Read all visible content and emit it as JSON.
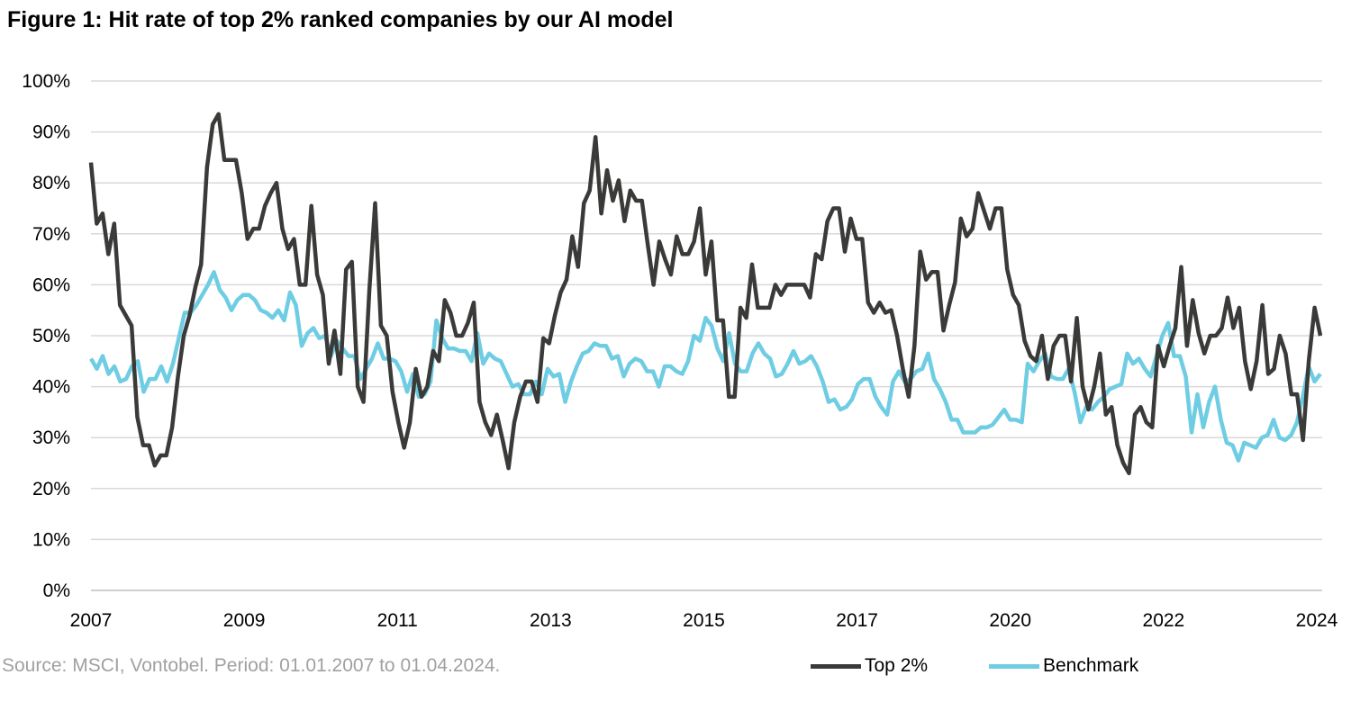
{
  "chart_data": {
    "type": "line",
    "title": "Figure 1: Hit rate of top 2% ranked companies by our AI model",
    "source": "Source: MSCI, Vontobel. Period: 01.01.2007 to 01.04.2024.",
    "x_tick_labels": [
      "2007",
      "2009",
      "2011",
      "2013",
      "2015",
      "2017",
      "2020",
      "2022",
      "2024"
    ],
    "y_tick_labels": [
      "0%",
      "10%",
      "20%",
      "30%",
      "40%",
      "50%",
      "60%",
      "70%",
      "80%",
      "90%",
      "100%"
    ],
    "ylim": [
      0,
      100
    ],
    "y_unit": "%",
    "grid": "horizontal",
    "legend_position": "bottom-right",
    "series": [
      {
        "name": "Top 2%",
        "color": "#3a3b39",
        "values": [
          84,
          72,
          74,
          66,
          72,
          56,
          54,
          52,
          34,
          28.5,
          28.5,
          24.5,
          26.5,
          26.5,
          32,
          42,
          50,
          54,
          59.5,
          64,
          83,
          91.5,
          93.5,
          84.5,
          84.5,
          84.5,
          78,
          69,
          71,
          71,
          75.5,
          78,
          80,
          71,
          67,
          69,
          60,
          60,
          75.5,
          62,
          58,
          44.5,
          51,
          42.5,
          63,
          64.5,
          40,
          37,
          59,
          76,
          52,
          50,
          39,
          33,
          28,
          33,
          43.5,
          38,
          40,
          47,
          45,
          57,
          54.5,
          50,
          50,
          52.5,
          56.5,
          37,
          33,
          30.5,
          34.5,
          29.5,
          24,
          33,
          38,
          41,
          41,
          37,
          49.5,
          48.5,
          54,
          58.5,
          61,
          69.5,
          63.5,
          76,
          78.5,
          89,
          74,
          82.5,
          76.5,
          80.5,
          72.5,
          78.5,
          76.5,
          76.5,
          68,
          60,
          68.5,
          65,
          62,
          69.5,
          66,
          66,
          68.5,
          75,
          62,
          68.5,
          53,
          53,
          38,
          38,
          55.5,
          53.5,
          64,
          55.5,
          55.5,
          55.5,
          60,
          58,
          60,
          60,
          60,
          60,
          57.5,
          66,
          65,
          72.5,
          75,
          75,
          66.5,
          73,
          69,
          69,
          56.5,
          54.5,
          56.5,
          54.5,
          55,
          50,
          43.5,
          38,
          48,
          66.5,
          61,
          62.5,
          62.5,
          51,
          56,
          60.5,
          73,
          69.5,
          71,
          78,
          74.5,
          71,
          75,
          75,
          63,
          58,
          56,
          49,
          46,
          45,
          50,
          41.5,
          48,
          50,
          50,
          41,
          53.5,
          40,
          35.5,
          40,
          46.5,
          34.5,
          36,
          28.5,
          25,
          23,
          34.5,
          36,
          33,
          32,
          48,
          44,
          48,
          51.5,
          63.5,
          48,
          57,
          50.5,
          46.5,
          50,
          50,
          51.5,
          57.5,
          51.5,
          55.5,
          45,
          39.5,
          45,
          56,
          42.5,
          43.5,
          50,
          46.5,
          38.5,
          38.5,
          29.5,
          45,
          55.5,
          50
        ]
      },
      {
        "name": "Benchmark",
        "color": "#6fcde3",
        "values": [
          45.5,
          43.5,
          46,
          42.5,
          44,
          41,
          41.5,
          44,
          45,
          39,
          41.5,
          41.5,
          44,
          41,
          44.5,
          49.5,
          54.5,
          54.5,
          56,
          58,
          60,
          62.5,
          59,
          57.5,
          55,
          57,
          58,
          58,
          57,
          55,
          54.5,
          53.5,
          55,
          53,
          58.5,
          56,
          48,
          50.5,
          51.5,
          49.5,
          50,
          46,
          49,
          47.5,
          46,
          46,
          41.5,
          43.5,
          45.5,
          48.5,
          45.5,
          45.5,
          45,
          43,
          39,
          42.5,
          38,
          38.5,
          41,
          53,
          49.5,
          47.5,
          47.5,
          47,
          47,
          45,
          50.5,
          44.5,
          46.5,
          45.5,
          45,
          42.5,
          40,
          40.5,
          38.5,
          38.5,
          41,
          38.5,
          43.5,
          42,
          42.5,
          37,
          41,
          44,
          46.5,
          47,
          48.5,
          48,
          48,
          45.5,
          46,
          42,
          44.5,
          45.5,
          45,
          43,
          43,
          40,
          44,
          44,
          43,
          42.5,
          45,
          50,
          49,
          53.5,
          52,
          47.5,
          45,
          50.5,
          44.5,
          43,
          43,
          46.5,
          48.5,
          46.5,
          45.5,
          42,
          42.5,
          44.5,
          47,
          44.5,
          45,
          46,
          44,
          41,
          37,
          37.5,
          35.5,
          36,
          37.5,
          40.5,
          41.5,
          41.5,
          38,
          36,
          34.5,
          41,
          43,
          41,
          41.5,
          43,
          43.5,
          46.5,
          41.5,
          39.5,
          37,
          33.5,
          33.5,
          31,
          31,
          31,
          32,
          32,
          32.5,
          34,
          35.5,
          33.5,
          33.5,
          33,
          44.5,
          43,
          45,
          46.5,
          42,
          41.5,
          41.5,
          43.5,
          39,
          33,
          36,
          35.5,
          37,
          38,
          39.5,
          40,
          40.5,
          46.5,
          44.5,
          45.5,
          43.5,
          42,
          46,
          50,
          52.5,
          46,
          46,
          42,
          31,
          38.5,
          32,
          37,
          40,
          33.5,
          29,
          28.5,
          25.5,
          29,
          28.5,
          28,
          30,
          30.5,
          33.5,
          30,
          29.5,
          30.5,
          33,
          38,
          44,
          41,
          42.5
        ]
      }
    ]
  }
}
